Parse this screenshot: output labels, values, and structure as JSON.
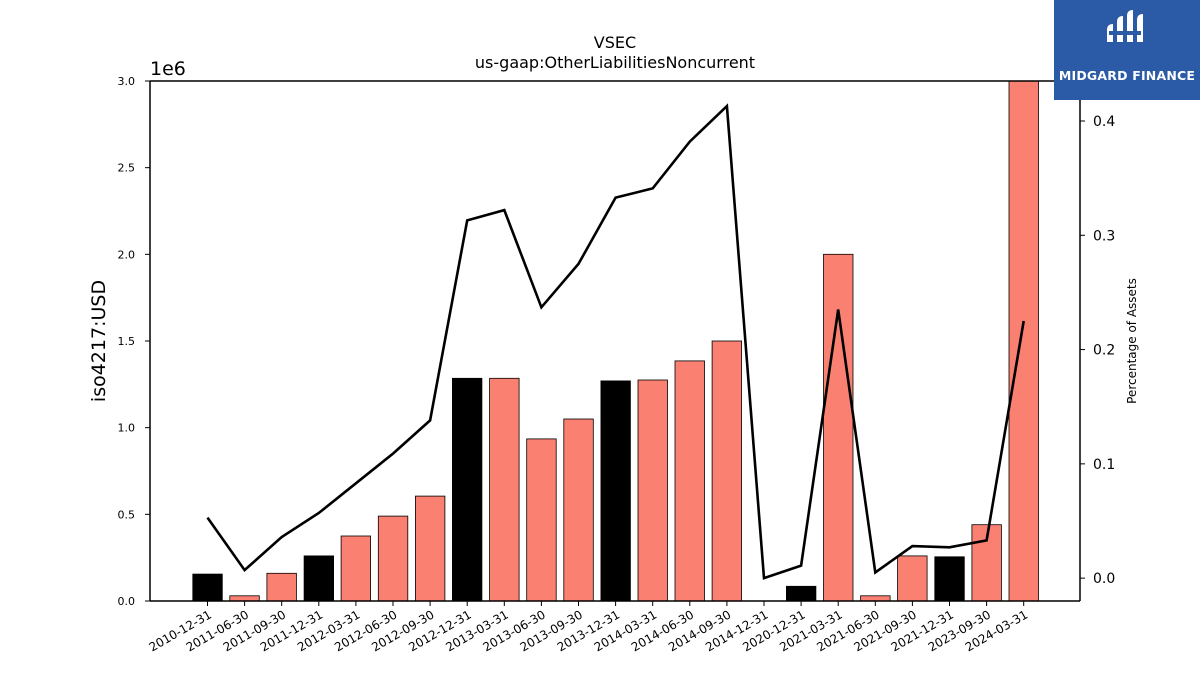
{
  "chart_data": {
    "type": "bar",
    "title": "VSEC",
    "subtitle": "us-gaap:OtherLiabilitiesNoncurrent",
    "ylabel": "iso4217:USD",
    "ylabel_right": "Percentage of Assets",
    "y_multiplier_label": "1e6",
    "ylim": [
      0,
      3000000
    ],
    "ylim_right": [
      -0.02,
      0.435
    ],
    "y_ticks": [
      0,
      500000,
      1000000,
      1500000,
      2000000,
      2500000,
      3000000
    ],
    "y_tick_labels": [
      "0.0",
      "0.5",
      "1.0",
      "1.5",
      "2.0",
      "2.5",
      "3.0"
    ],
    "y_right_ticks": [
      0,
      0.1,
      0.2,
      0.3,
      0.4
    ],
    "y_right_tick_labels": [
      "0.0",
      "0.1",
      "0.2",
      "0.3",
      "0.4"
    ],
    "grid": false,
    "legend": "none",
    "colors": {
      "annual": "#000000",
      "quarterly": "#fa8072",
      "line": "#000000"
    },
    "categories": [
      "2010-12-31",
      "2011-06-30",
      "2011-09-30",
      "2011-12-31",
      "2012-03-31",
      "2012-06-30",
      "2012-09-30",
      "2012-12-31",
      "2013-03-31",
      "2013-06-30",
      "2013-09-30",
      "2013-12-31",
      "2014-03-31",
      "2014-06-30",
      "2014-09-30",
      "2014-12-31",
      "2020-12-31",
      "2021-03-31",
      "2021-06-30",
      "2021-09-30",
      "2021-12-31",
      "2023-09-30",
      "2024-03-31"
    ],
    "series": [
      {
        "type": "bar",
        "values": [
          155000,
          30000,
          160000,
          260000,
          375000,
          490000,
          605000,
          1285000,
          1285000,
          935000,
          1050000,
          1270000,
          1275000,
          1385000,
          1500000,
          0,
          85000,
          2000000,
          30000,
          260000,
          255000,
          440000,
          3000000
        ],
        "bar_kind": [
          "annual",
          "quarterly",
          "quarterly",
          "annual",
          "quarterly",
          "quarterly",
          "quarterly",
          "annual",
          "quarterly",
          "quarterly",
          "quarterly",
          "annual",
          "quarterly",
          "quarterly",
          "quarterly",
          "annual",
          "annual",
          "quarterly",
          "quarterly",
          "quarterly",
          "annual",
          "quarterly",
          "quarterly"
        ]
      },
      {
        "type": "line",
        "axis": "right",
        "values": [
          0.053,
          0.007,
          0.036,
          0.057,
          0.083,
          0.109,
          0.138,
          0.313,
          0.322,
          0.237,
          0.275,
          0.333,
          0.341,
          0.382,
          0.413,
          0.0,
          0.011,
          0.235,
          0.005,
          0.028,
          0.027,
          0.033,
          0.225
        ]
      }
    ]
  },
  "branding": {
    "logo_text": "MIDGARD FINANCE"
  }
}
